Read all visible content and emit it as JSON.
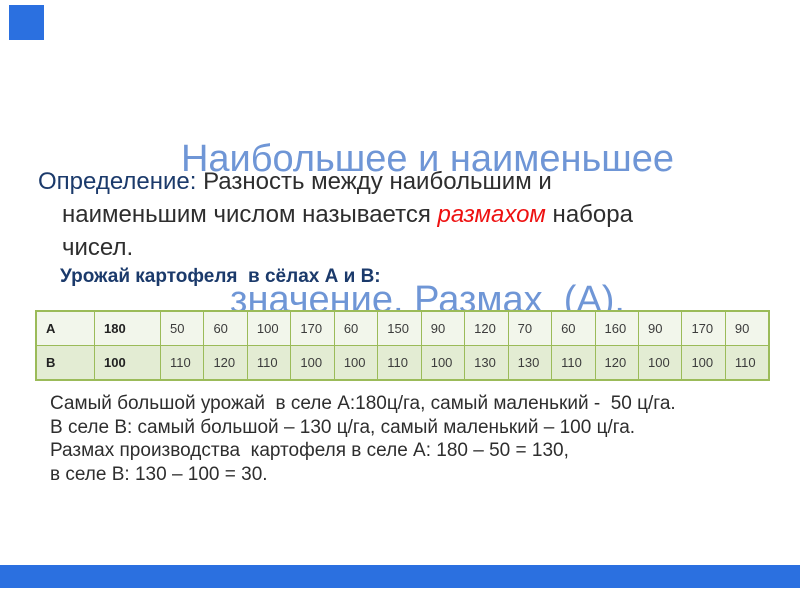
{
  "slide": {
    "title_line1": "Наибольшее и наименьшее",
    "title_line2": "значение. Размах  (А).",
    "definition": {
      "label": "Определение:",
      "line1_rest": " Разность между наибольшим и",
      "line2_before": "наименьшим числом называется ",
      "highlight": "размахом",
      "line2_after": " набора",
      "line3": "чисел."
    },
    "subtitle": "Урожай картофеля  в сёлах А и В:",
    "table": {
      "rows": [
        {
          "label": "А",
          "values": [
            "180",
            "50",
            "60",
            "100",
            "170",
            "60",
            "150",
            "90",
            "120",
            "70",
            "60",
            "160",
            "90",
            "170",
            "90"
          ]
        },
        {
          "label": "В",
          "values": [
            "100",
            "110",
            "120",
            "110",
            "100",
            "100",
            "110",
            "100",
            "130",
            "130",
            "110",
            "120",
            "100",
            "100",
            "110"
          ]
        }
      ]
    },
    "analysis_lines": [
      "Самый большой урожай  в селе А:180ц/га, самый маленький -  50 ц/га.",
      "В селе В: самый большой – 130 ц/га, самый маленький – 100 ц/га.",
      "Размах производства  картофеля в селе А: 180 – 50 = 130,",
      "в селе В: 130 – 100 = 30."
    ],
    "colors": {
      "accent_blue": "#2b70e0",
      "title_blue": "#6f96d6",
      "navy": "#1b3a6b",
      "highlight_red": "#ee1111",
      "table_border": "#9bbb59",
      "row_a_bg": "#f2f6eb",
      "row_b_bg": "#e3ecd3",
      "text_dark": "#2e2e2e"
    }
  }
}
